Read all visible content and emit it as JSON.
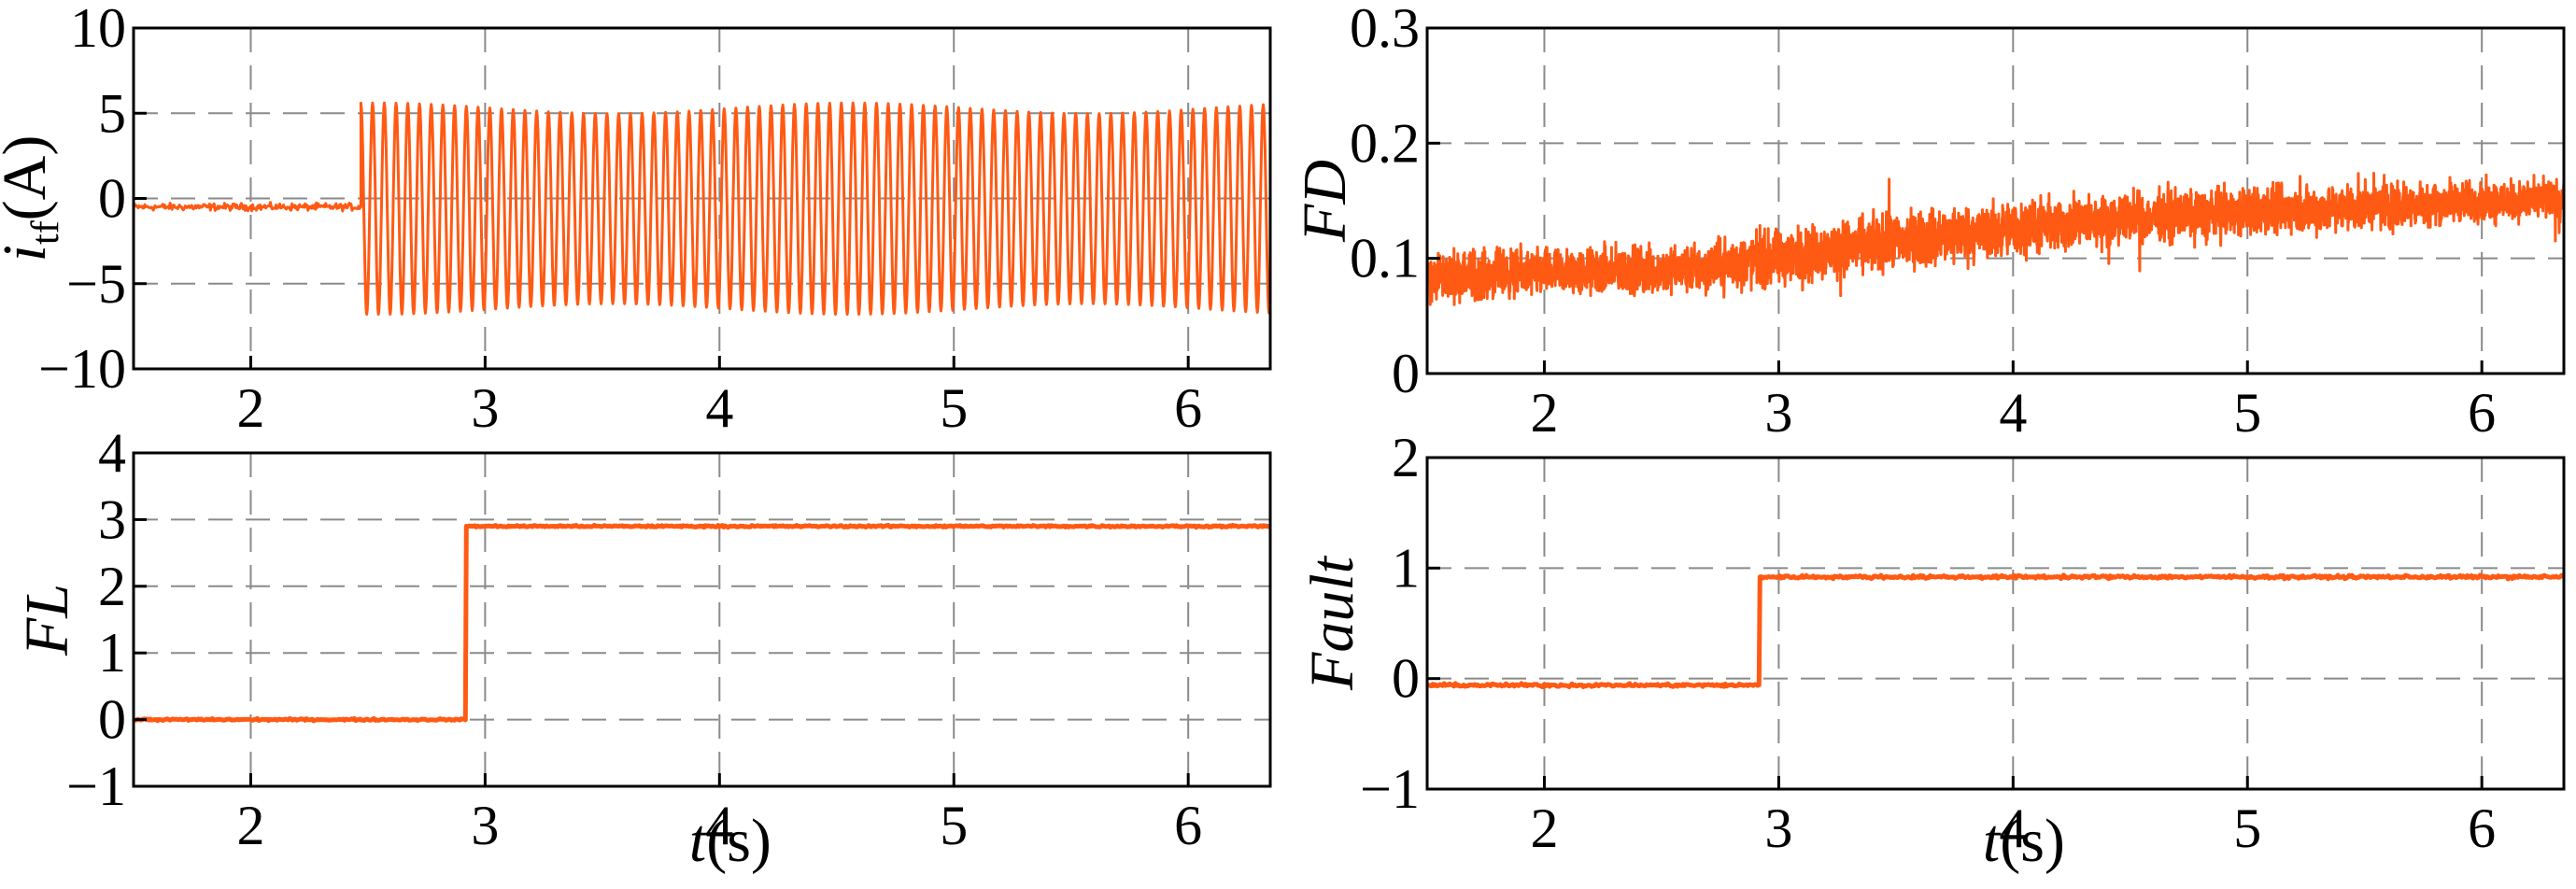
{
  "colors": {
    "trace": "#ff5a14",
    "grid": "#8a8a8a",
    "frame": "#000000"
  },
  "chart_data": [
    {
      "id": "itf",
      "type": "line",
      "title": "",
      "xlabel": "",
      "ylabel": {
        "symbol": "i",
        "subscript": "tf",
        "unit": "(A)"
      },
      "xlim": [
        1.5,
        6.35
      ],
      "ylim": [
        -10,
        10
      ],
      "xticks": [
        "2",
        "3",
        "4",
        "5",
        "6"
      ],
      "yticks": [
        "10",
        "5",
        "0",
        "−5",
        "−10"
      ],
      "grid": true,
      "series": [
        {
          "kind": "fault_sine",
          "segments": [
            {
              "x": [
                1.5,
                2.47
              ],
              "level": -0.5,
              "noise": 0.3
            },
            {
              "x": [
                2.47,
                6.35
              ],
              "amplitude": 6.2,
              "offset": -0.6,
              "frequency_hz": 20
            }
          ]
        }
      ]
    },
    {
      "id": "fd",
      "type": "line",
      "title": "",
      "xlabel": "",
      "ylabel": {
        "symbol": "FD"
      },
      "xlim": [
        1.5,
        6.35
      ],
      "ylim": [
        0,
        0.3
      ],
      "xticks": [
        "2",
        "3",
        "4",
        "5",
        "6"
      ],
      "yticks": [
        "0.3",
        "0.2",
        "0.1",
        "0"
      ],
      "grid": true,
      "series": [
        {
          "kind": "noisy_trend",
          "x": [
            1.5,
            2.6,
            3.0,
            3.5,
            4.0,
            4.5,
            5.0,
            5.5,
            6.0,
            6.35
          ],
          "mean": [
            0.085,
            0.09,
            0.1,
            0.115,
            0.125,
            0.135,
            0.14,
            0.145,
            0.15,
            0.15
          ],
          "spread": [
            0.03,
            0.03,
            0.035,
            0.035,
            0.035,
            0.03,
            0.03,
            0.03,
            0.025,
            0.025
          ]
        }
      ]
    },
    {
      "id": "fl",
      "type": "line",
      "title": "",
      "xlabel": {
        "symbol": "t",
        "unit": "(s)"
      },
      "ylabel": {
        "symbol": "FL"
      },
      "xlim": [
        1.5,
        6.35
      ],
      "ylim": [
        -1,
        4
      ],
      "xticks": [
        "2",
        "3",
        "4",
        "5",
        "6"
      ],
      "yticks": [
        "4",
        "3",
        "2",
        "1",
        "0",
        "−1"
      ],
      "grid": true,
      "series": [
        {
          "kind": "step",
          "x": [
            1.5,
            2.92,
            2.92,
            6.35
          ],
          "y": [
            0,
            0,
            2.9,
            2.9
          ],
          "noise": 0.02
        }
      ]
    },
    {
      "id": "fault",
      "type": "line",
      "title": "",
      "xlabel": {
        "symbol": "t",
        "unit": "(s)"
      },
      "ylabel": {
        "symbol": "Fault"
      },
      "xlim": [
        1.5,
        6.35
      ],
      "ylim": [
        -1,
        2
      ],
      "xticks": [
        "2",
        "3",
        "4",
        "5",
        "6"
      ],
      "yticks": [
        "2",
        "1",
        "0",
        "−1"
      ],
      "grid": true,
      "series": [
        {
          "kind": "step",
          "x": [
            1.5,
            2.92,
            2.92,
            6.35
          ],
          "y": [
            -0.06,
            -0.06,
            0.92,
            0.92
          ],
          "noise": 0.02
        }
      ]
    }
  ]
}
